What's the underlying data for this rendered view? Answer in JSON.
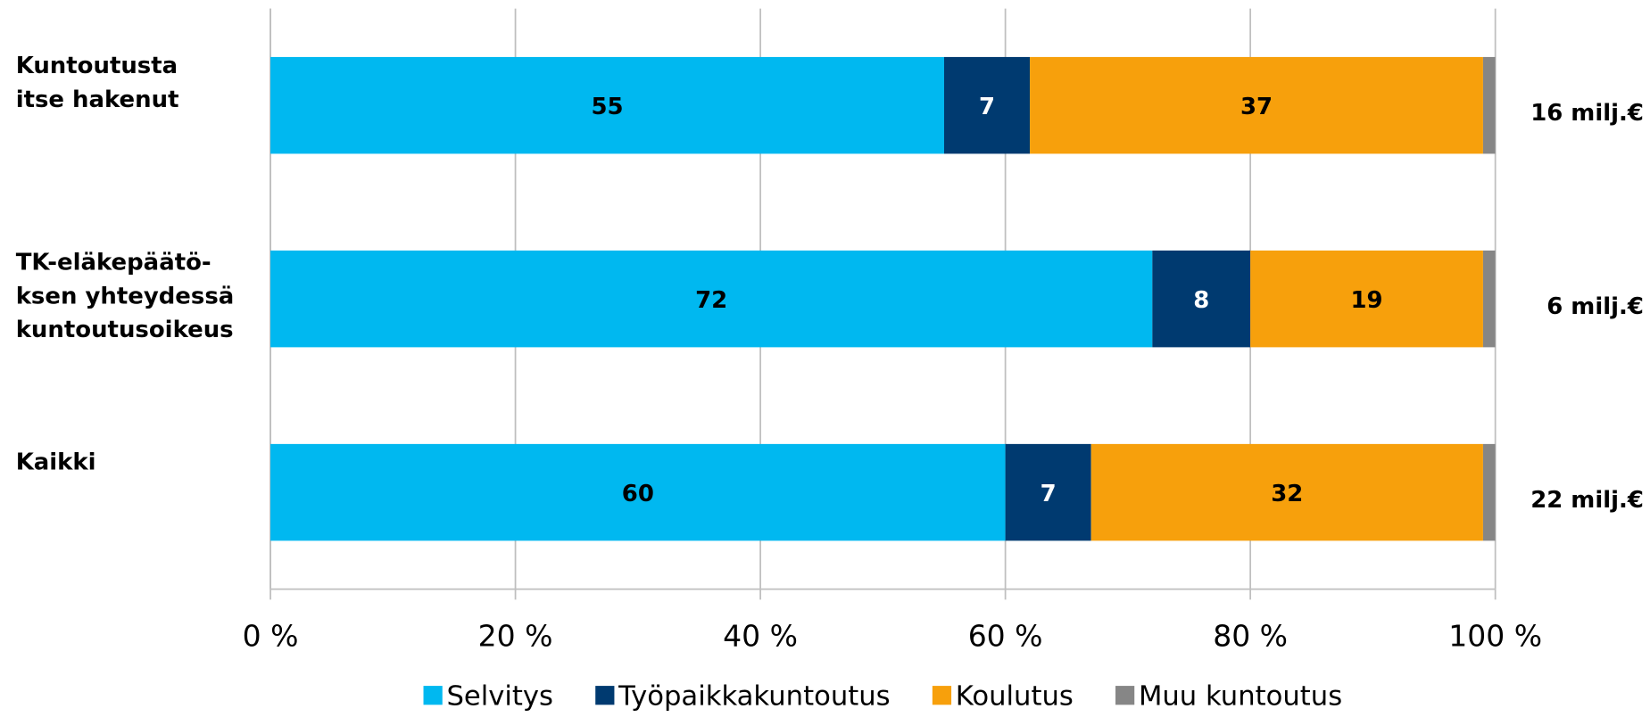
{
  "chart_data": {
    "type": "stacked-bar-horizontal",
    "categories": [
      [
        "Kuntoutusta",
        "itse hakenut"
      ],
      [
        "TK-eläkepäätö-",
        "ksen yhteydessä",
        "kuntoutusoikeus"
      ],
      [
        "Kaikki"
      ]
    ],
    "series": [
      {
        "name": "Selvitys",
        "color": "#00b8f0",
        "values": [
          55,
          72,
          60
        ]
      },
      {
        "name": "Työpaikkakuntoutus",
        "color": "#003a70",
        "values": [
          7,
          8,
          7
        ]
      },
      {
        "name": "Koulutus",
        "color": "#f7a00c",
        "values": [
          37,
          19,
          32
        ]
      },
      {
        "name": "Muu kuntoutus",
        "color": "#868686",
        "values": [
          1,
          1,
          1
        ]
      }
    ],
    "annotations": [
      "16 milj.€",
      "6 milj.€",
      "22 milj.€"
    ],
    "xlim": [
      0,
      100
    ],
    "xticks": [
      {
        "value": 0,
        "label": "0 %"
      },
      {
        "value": 20,
        "label": "20 %"
      },
      {
        "value": 40,
        "label": "40 %"
      },
      {
        "value": 60,
        "label": "60 %"
      },
      {
        "value": 80,
        "label": "80 %"
      },
      {
        "value": 100,
        "label": "100 %"
      }
    ],
    "grid": true,
    "legend": "bottom"
  }
}
